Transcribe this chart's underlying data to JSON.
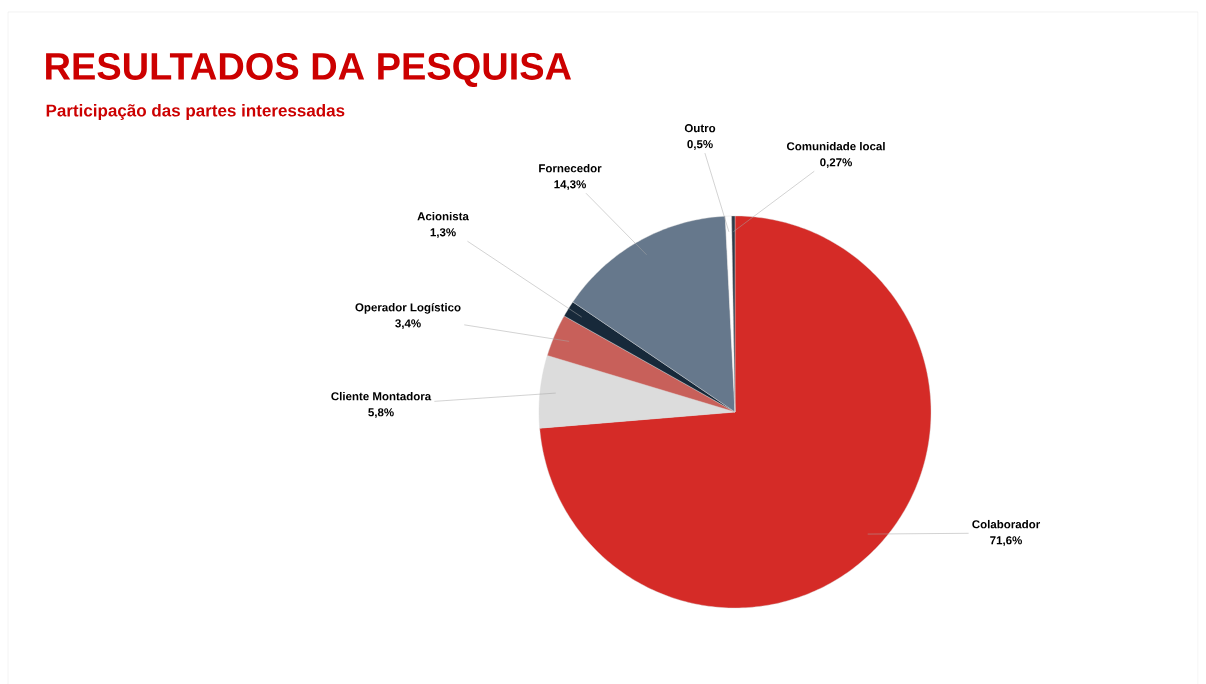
{
  "chart_data": {
    "type": "pie",
    "title": "RESULTADOS DA PESQUISA",
    "subtitle": "Participação das partes interessadas",
    "categories": [
      "Colaborador",
      "Cliente Montadora",
      "Operador Logístico",
      "Acionista",
      "Fornecedor",
      "Outro",
      "Comunidade local"
    ],
    "values": [
      71.6,
      5.8,
      3.4,
      1.3,
      14.3,
      0.5,
      0.27
    ],
    "value_labels": [
      "71,6%",
      "5,8%",
      "3,4%",
      "1,3%",
      "14,3%",
      "0,5%",
      "0,27%"
    ],
    "colors": [
      "#d52b27",
      "#dcdcdc",
      "#c8605a",
      "#17293a",
      "#66788c",
      "#ffffff",
      "#2e3a48"
    ]
  }
}
